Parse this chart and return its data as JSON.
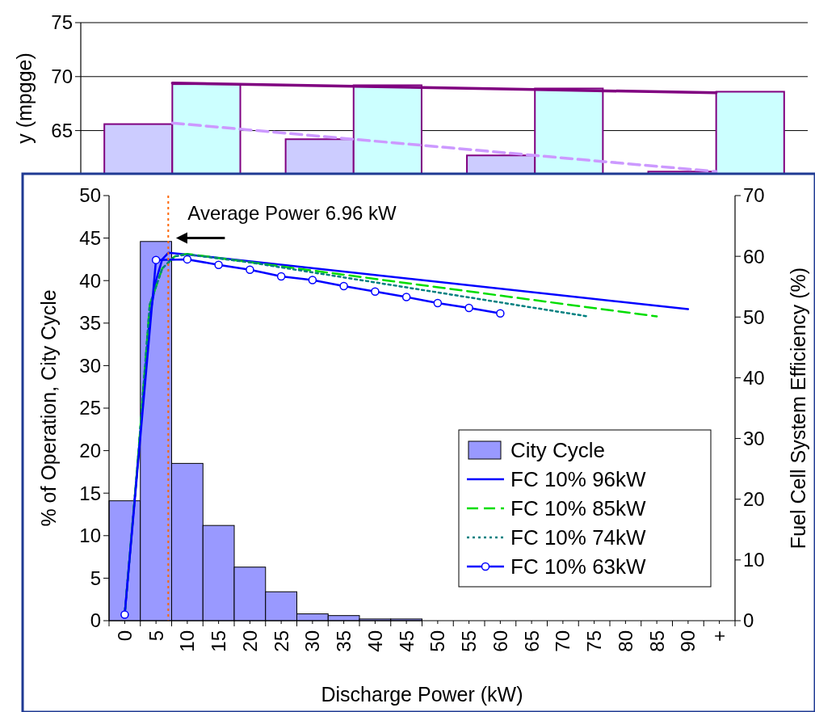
{
  "chart_data": [
    {
      "type": "bar",
      "ylabel": "y (mpgge)",
      "categories": [
        null,
        null,
        null,
        null
      ],
      "series": [
        {
          "color": "#ccccff",
          "values": [
            65.6,
            64.2,
            62.7,
            61.2
          ]
        },
        {
          "color": "#ccffff",
          "values": [
            69.3,
            69.2,
            68.9,
            68.6
          ]
        },
        {
          "type": "line",
          "color": "#800080",
          "values": [
            69.4,
            69.1,
            68.8,
            68.5
          ]
        },
        {
          "type": "line",
          "color": "#cc99ff",
          "line_style": "dashed",
          "values": [
            65.7,
            64.2,
            62.7,
            61.2
          ]
        }
      ],
      "ylim": [
        61,
        75
      ],
      "yticks": [
        65,
        70,
        75
      ],
      "grid": "y",
      "tick_labels": "y"
    },
    {
      "type": "bar",
      "xlabel": "Discharge Power (kW)",
      "ylabel": "% of Operation, City Cycle",
      "y2label": "Fuel Cell System Efficiency (%)",
      "series": [
        {
          "name": "City Cycle",
          "type": "bar",
          "color": "#9999ff",
          "x": [
            0,
            5,
            10,
            15,
            20,
            25,
            30,
            35,
            40,
            45,
            50,
            55,
            60,
            65,
            70,
            75,
            80,
            85,
            90,
            95
          ],
          "values": [
            14.1,
            44.6,
            18.5,
            11.2,
            6.3,
            3.4,
            0.8,
            0.6,
            0.2,
            0.2,
            0,
            0,
            0,
            0,
            0,
            0,
            0,
            0,
            0,
            0
          ]
        },
        {
          "name": "FC 10% 96kW",
          "type": "line",
          "axis": "y2",
          "color": "#0000ff",
          "line_style": "solid",
          "x": [
            0,
            2,
            4,
            5,
            6,
            7,
            10,
            90
          ],
          "values": [
            1,
            25,
            50,
            56,
            59.5,
            60.6,
            60.3,
            51.3
          ]
        },
        {
          "name": "FC 10% 85kW",
          "type": "line",
          "axis": "y2",
          "color": "#00dd00",
          "line_style": "dashed",
          "x": [
            0,
            2,
            4,
            6,
            8,
            10,
            85
          ],
          "values": [
            1,
            25,
            52,
            58,
            60,
            60.4,
            50.1
          ]
        },
        {
          "name": "FC 10% 74kW",
          "type": "line",
          "axis": "y2",
          "color": "#008080",
          "line_style": "dotted",
          "x": [
            0,
            2,
            4,
            6,
            8,
            10,
            20,
            74
          ],
          "values": [
            1,
            25,
            52,
            58,
            60,
            60.3,
            59,
            50.1
          ]
        },
        {
          "name": "FC 10% 63kW",
          "type": "line",
          "axis": "y2",
          "color": "#0000ff",
          "line_style": "solid",
          "marker": "circle",
          "x": [
            0,
            5,
            10,
            15,
            20,
            25,
            30,
            35,
            40,
            45,
            50,
            55,
            60
          ],
          "values": [
            1,
            59.4,
            59.5,
            58.6,
            57.8,
            56.7,
            56.1,
            55.1,
            54.2,
            53.3,
            52.3,
            51.5,
            50.6
          ]
        }
      ],
      "xlim": [
        -2.5,
        97.5
      ],
      "xticks": [
        0,
        5,
        10,
        15,
        20,
        25,
        30,
        35,
        40,
        45,
        50,
        55,
        60,
        65,
        70,
        75,
        80,
        85,
        90,
        {
          "value": 95,
          "label": "+"
        },
        {
          "value": -2.5,
          "label": null
        },
        {
          "value": 2.5,
          "label": null
        },
        {
          "value": 7.5,
          "label": null
        },
        {
          "value": 12.5,
          "label": null
        },
        {
          "value": 17.5,
          "label": null
        },
        {
          "value": 22.5,
          "label": null
        },
        {
          "value": 27.5,
          "label": null
        },
        {
          "value": 32.5,
          "label": null
        },
        {
          "value": 37.5,
          "label": null
        },
        {
          "value": 42.5,
          "label": null
        },
        {
          "value": 47.5,
          "label": null
        },
        {
          "value": 52.5,
          "label": null
        },
        {
          "value": 57.5,
          "label": null
        },
        {
          "value": 62.5,
          "label": null
        },
        {
          "value": 67.5,
          "label": null
        },
        {
          "value": 72.5,
          "label": null
        },
        {
          "value": 77.5,
          "label": null
        },
        {
          "value": 82.5,
          "label": null
        },
        {
          "value": 87.5,
          "label": null
        },
        {
          "value": 92.5,
          "label": null
        },
        {
          "value": 97.5,
          "label": null
        }
      ],
      "ylim": [
        0,
        50
      ],
      "yticks": [
        0,
        5,
        10,
        15,
        20,
        25,
        30,
        35,
        40,
        45,
        50
      ],
      "y2lim": [
        0,
        70
      ],
      "y2ticks": [
        0,
        10,
        20,
        30,
        40,
        50,
        60,
        70
      ],
      "ref_lines": [
        {
          "axis": "x",
          "value": 6.96,
          "label": "Average Power 6.96 kW",
          "color": "#ff6600",
          "line_style": "dotted"
        }
      ],
      "legend": "bottom right"
    }
  ]
}
